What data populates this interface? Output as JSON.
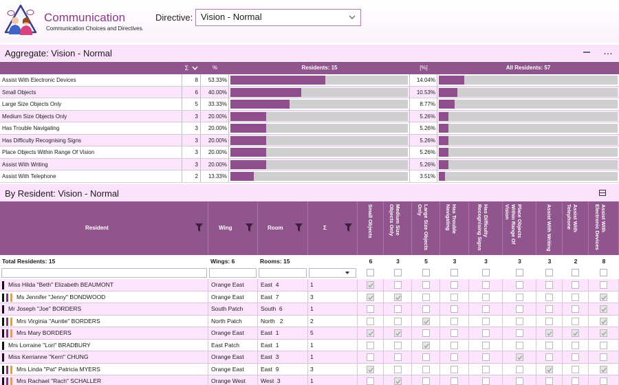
{
  "header": {
    "title": "Communication",
    "subtitle": "Communication Choices and Directives.",
    "directive_label": "Directive:",
    "directive_value": "Vision - Normal"
  },
  "aggregate": {
    "title": "Aggregate: Vision - Normal",
    "minimize_icon": "minimize-icon",
    "more_label": "…",
    "columns": {
      "sum": "Σ",
      "pct": "%",
      "residents": "Residents: 15",
      "pct_all": "[%]",
      "all_residents": "All Residents: 57"
    },
    "rows": [
      {
        "name": "Assist With Electronic Devices",
        "count": "8",
        "pct": "53.33%",
        "frac": 0.5333,
        "pct_all": "14.04%",
        "frac_all": 0.1404
      },
      {
        "name": "Small Objects",
        "count": "6",
        "pct": "40.00%",
        "frac": 0.4,
        "pct_all": "10.53%",
        "frac_all": 0.1053
      },
      {
        "name": "Large Size Objects Only",
        "count": "5",
        "pct": "33.33%",
        "frac": 0.3333,
        "pct_all": "8.77%",
        "frac_all": 0.0877
      },
      {
        "name": "Medium Size Objects Only",
        "count": "3",
        "pct": "20.00%",
        "frac": 0.2,
        "pct_all": "5.26%",
        "frac_all": 0.0526
      },
      {
        "name": "Has Trouble Navigating",
        "count": "3",
        "pct": "20.00%",
        "frac": 0.2,
        "pct_all": "5.26%",
        "frac_all": 0.0526
      },
      {
        "name": "Has Difficulty Recognising Signs",
        "count": "3",
        "pct": "20.00%",
        "frac": 0.2,
        "pct_all": "5.26%",
        "frac_all": 0.0526
      },
      {
        "name": "Place Objects Within Range Of Vision",
        "count": "3",
        "pct": "20.00%",
        "frac": 0.2,
        "pct_all": "5.26%",
        "frac_all": 0.0526
      },
      {
        "name": "Assist With Writing",
        "count": "3",
        "pct": "20.00%",
        "frac": 0.2,
        "pct_all": "5.26%",
        "frac_all": 0.0526
      },
      {
        "name": "Assist With Telephone",
        "count": "2",
        "pct": "13.33%",
        "frac": 0.1333,
        "pct_all": "3.51%",
        "frac_all": 0.0351
      }
    ]
  },
  "residents": {
    "title": "By Resident: Vision - Normal",
    "columns": {
      "resident": "Resident",
      "wing": "Wing",
      "room": "Room",
      "sum": "Σ"
    },
    "check_columns": [
      "Small Objects",
      "Medium Size Objects Only",
      "Large Size Objects Only",
      "Has Trouble Navigating",
      "Has Difficulty Recognising Signs",
      "Place Objects Within Range Of Vision",
      "Assist With Writing",
      "Assist With Telephone",
      "Assist With Electronic Devices"
    ],
    "totals": {
      "residents": "Total Residents: 15",
      "wings": "Wings: 6",
      "rooms": "Rooms: 15",
      "counts": [
        "6",
        "3",
        "5",
        "3",
        "3",
        "3",
        "3",
        "2",
        "8"
      ]
    },
    "flag_colors": {
      "black": "#111111",
      "purple": "#8a2f86",
      "orange": "#f0a01e"
    },
    "rows": [
      {
        "name": "Miss Hilda \"Beth\" Elizabeth BEAUMONT",
        "wing": "Orange East",
        "room": "East  4",
        "sum": "1",
        "flags": [
          "black"
        ],
        "checks": [
          1,
          0,
          0,
          0,
          0,
          0,
          0,
          0,
          0
        ]
      },
      {
        "name": "Ms Jennifer \"Jenny\" BONDWOOD",
        "wing": "Orange East",
        "room": "East  7",
        "sum": "3",
        "flags": [
          "black",
          "purple",
          "orange"
        ],
        "checks": [
          1,
          1,
          0,
          0,
          0,
          0,
          0,
          0,
          1
        ]
      },
      {
        "name": "Mr Joseph \"Joe\" BORDERS",
        "wing": "South Patch",
        "room": "South  6",
        "sum": "1",
        "flags": [
          "black"
        ],
        "checks": [
          0,
          0,
          0,
          0,
          0,
          0,
          0,
          0,
          1
        ]
      },
      {
        "name": "Mrs Virginia \"Auntie\" BORDERS",
        "wing": "North Patch",
        "room": "North   2",
        "sum": "2",
        "flags": [
          "black",
          "purple",
          "orange"
        ],
        "checks": [
          0,
          0,
          1,
          0,
          0,
          0,
          0,
          0,
          1
        ]
      },
      {
        "name": "Mrs Mary BORDERS",
        "wing": "Orange East",
        "room": "East  1",
        "sum": "5",
        "flags": [
          "black",
          "purple",
          "orange"
        ],
        "checks": [
          1,
          1,
          0,
          0,
          0,
          0,
          1,
          1,
          1
        ]
      },
      {
        "name": "Mrs Lorraine \"Lori\" BRADBURY",
        "wing": "East Patch",
        "room": "East  1",
        "sum": "1",
        "flags": [
          "black"
        ],
        "checks": [
          0,
          0,
          1,
          0,
          0,
          0,
          0,
          0,
          0
        ]
      },
      {
        "name": "Miss Kerrianne \"Kerri\" CHUNG",
        "wing": "Orange East",
        "room": "East  3",
        "sum": "1",
        "flags": [
          "black"
        ],
        "checks": [
          0,
          0,
          0,
          0,
          0,
          1,
          0,
          0,
          0
        ]
      },
      {
        "name": "Mrs Linda \"Pat\" Patricia MYERS",
        "wing": "Orange East",
        "room": "East  9",
        "sum": "3",
        "flags": [
          "black",
          "purple",
          "orange"
        ],
        "checks": [
          1,
          0,
          0,
          0,
          0,
          0,
          1,
          0,
          1
        ]
      },
      {
        "name": "Mrs Rachael \"Rach\" SCHALLER",
        "wing": "Orange West",
        "room": "West  3",
        "sum": "1",
        "flags": [
          "black",
          "purple",
          "orange"
        ],
        "checks": [
          0,
          1,
          0,
          0,
          0,
          0,
          0,
          0,
          0
        ]
      }
    ]
  }
}
